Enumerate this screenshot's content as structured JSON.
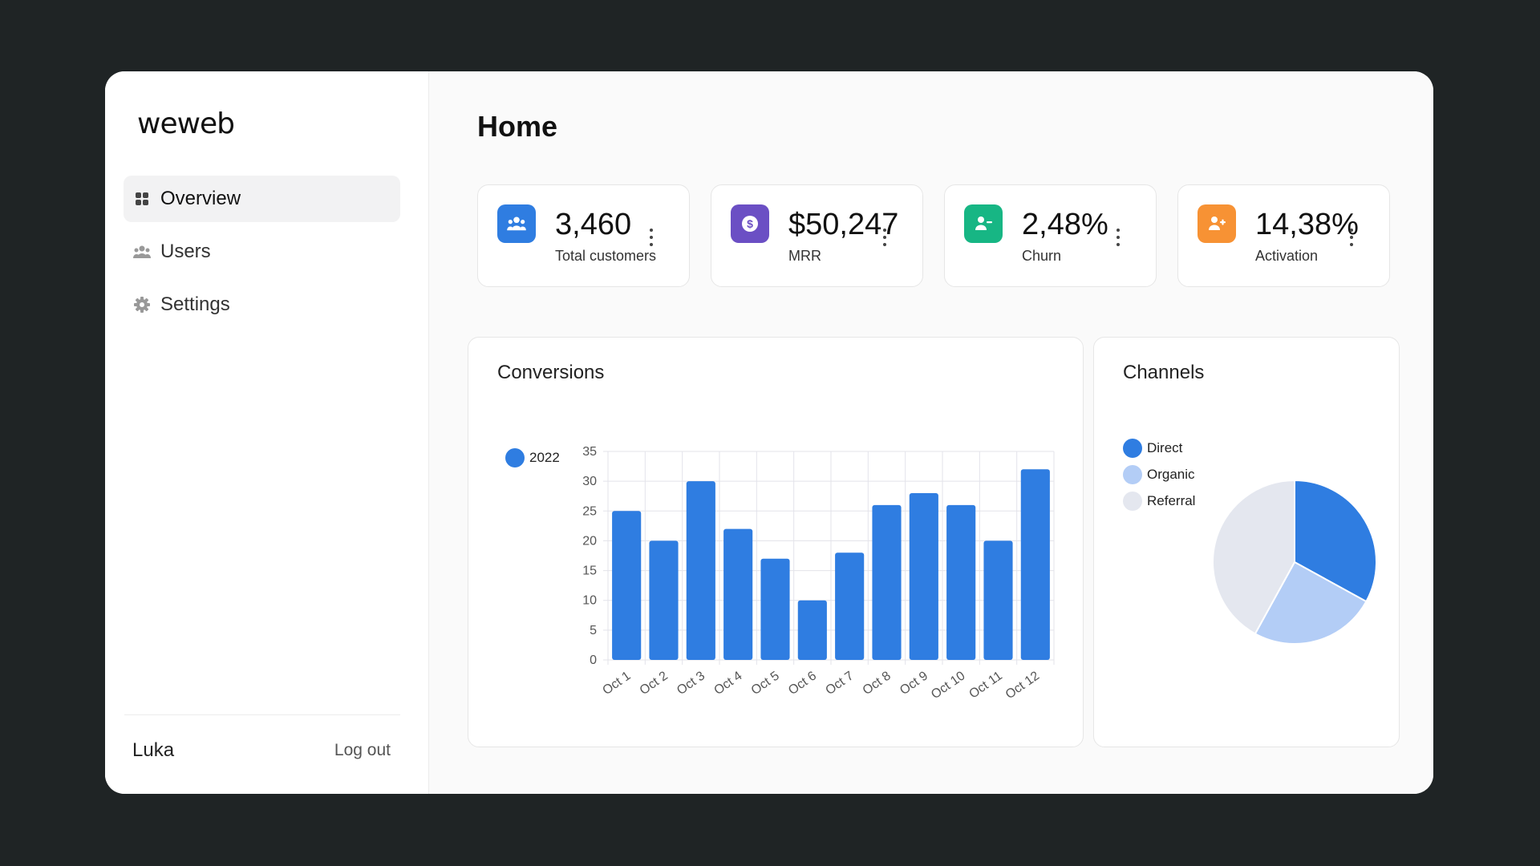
{
  "brand": "weweb",
  "page_title": "Home",
  "nav": {
    "items": [
      {
        "label": "Overview",
        "icon": "grid-icon",
        "active": true
      },
      {
        "label": "Users",
        "icon": "users-icon",
        "active": false
      },
      {
        "label": "Settings",
        "icon": "gear-icon",
        "active": false
      }
    ]
  },
  "footer": {
    "user": "Luka",
    "logout": "Log out"
  },
  "kpis": [
    {
      "value": "3,460",
      "label": "Total customers",
      "icon": "users-icon",
      "color": "#2f7de1"
    },
    {
      "value": "$50,247",
      "label": "MRR",
      "icon": "dollar-icon",
      "color": "#6b4fc4"
    },
    {
      "value": "2,48%",
      "label": "Churn",
      "icon": "user-minus-icon",
      "color": "#17b684"
    },
    {
      "value": "14,38%",
      "label": "Activation",
      "icon": "user-plus-icon",
      "color": "#f79234"
    }
  ],
  "conversions": {
    "title": "Conversions",
    "chart_data": {
      "type": "bar",
      "categories": [
        "Oct 1",
        "Oct 2",
        "Oct 3",
        "Oct 4",
        "Oct 5",
        "Oct 6",
        "Oct 7",
        "Oct 8",
        "Oct 9",
        "Oct 10",
        "Oct 11",
        "Oct 12"
      ],
      "series": [
        {
          "name": "2022",
          "values": [
            25,
            20,
            30,
            22,
            17,
            10,
            18,
            26,
            28,
            26,
            20,
            32
          ],
          "color": "#2f7de1"
        }
      ],
      "ylim": [
        0,
        35
      ],
      "yticks": [
        0,
        5,
        10,
        15,
        20,
        25,
        30,
        35
      ],
      "grid": true,
      "legend": "left"
    }
  },
  "channels": {
    "title": "Channels",
    "chart_data": {
      "type": "pie",
      "labels": [
        "Direct",
        "Organic",
        "Referral"
      ],
      "values": [
        33,
        25,
        42
      ],
      "colors": [
        "#2f7de1",
        "#b3cdf6",
        "#e4e7ef"
      ],
      "legend": "left"
    }
  }
}
